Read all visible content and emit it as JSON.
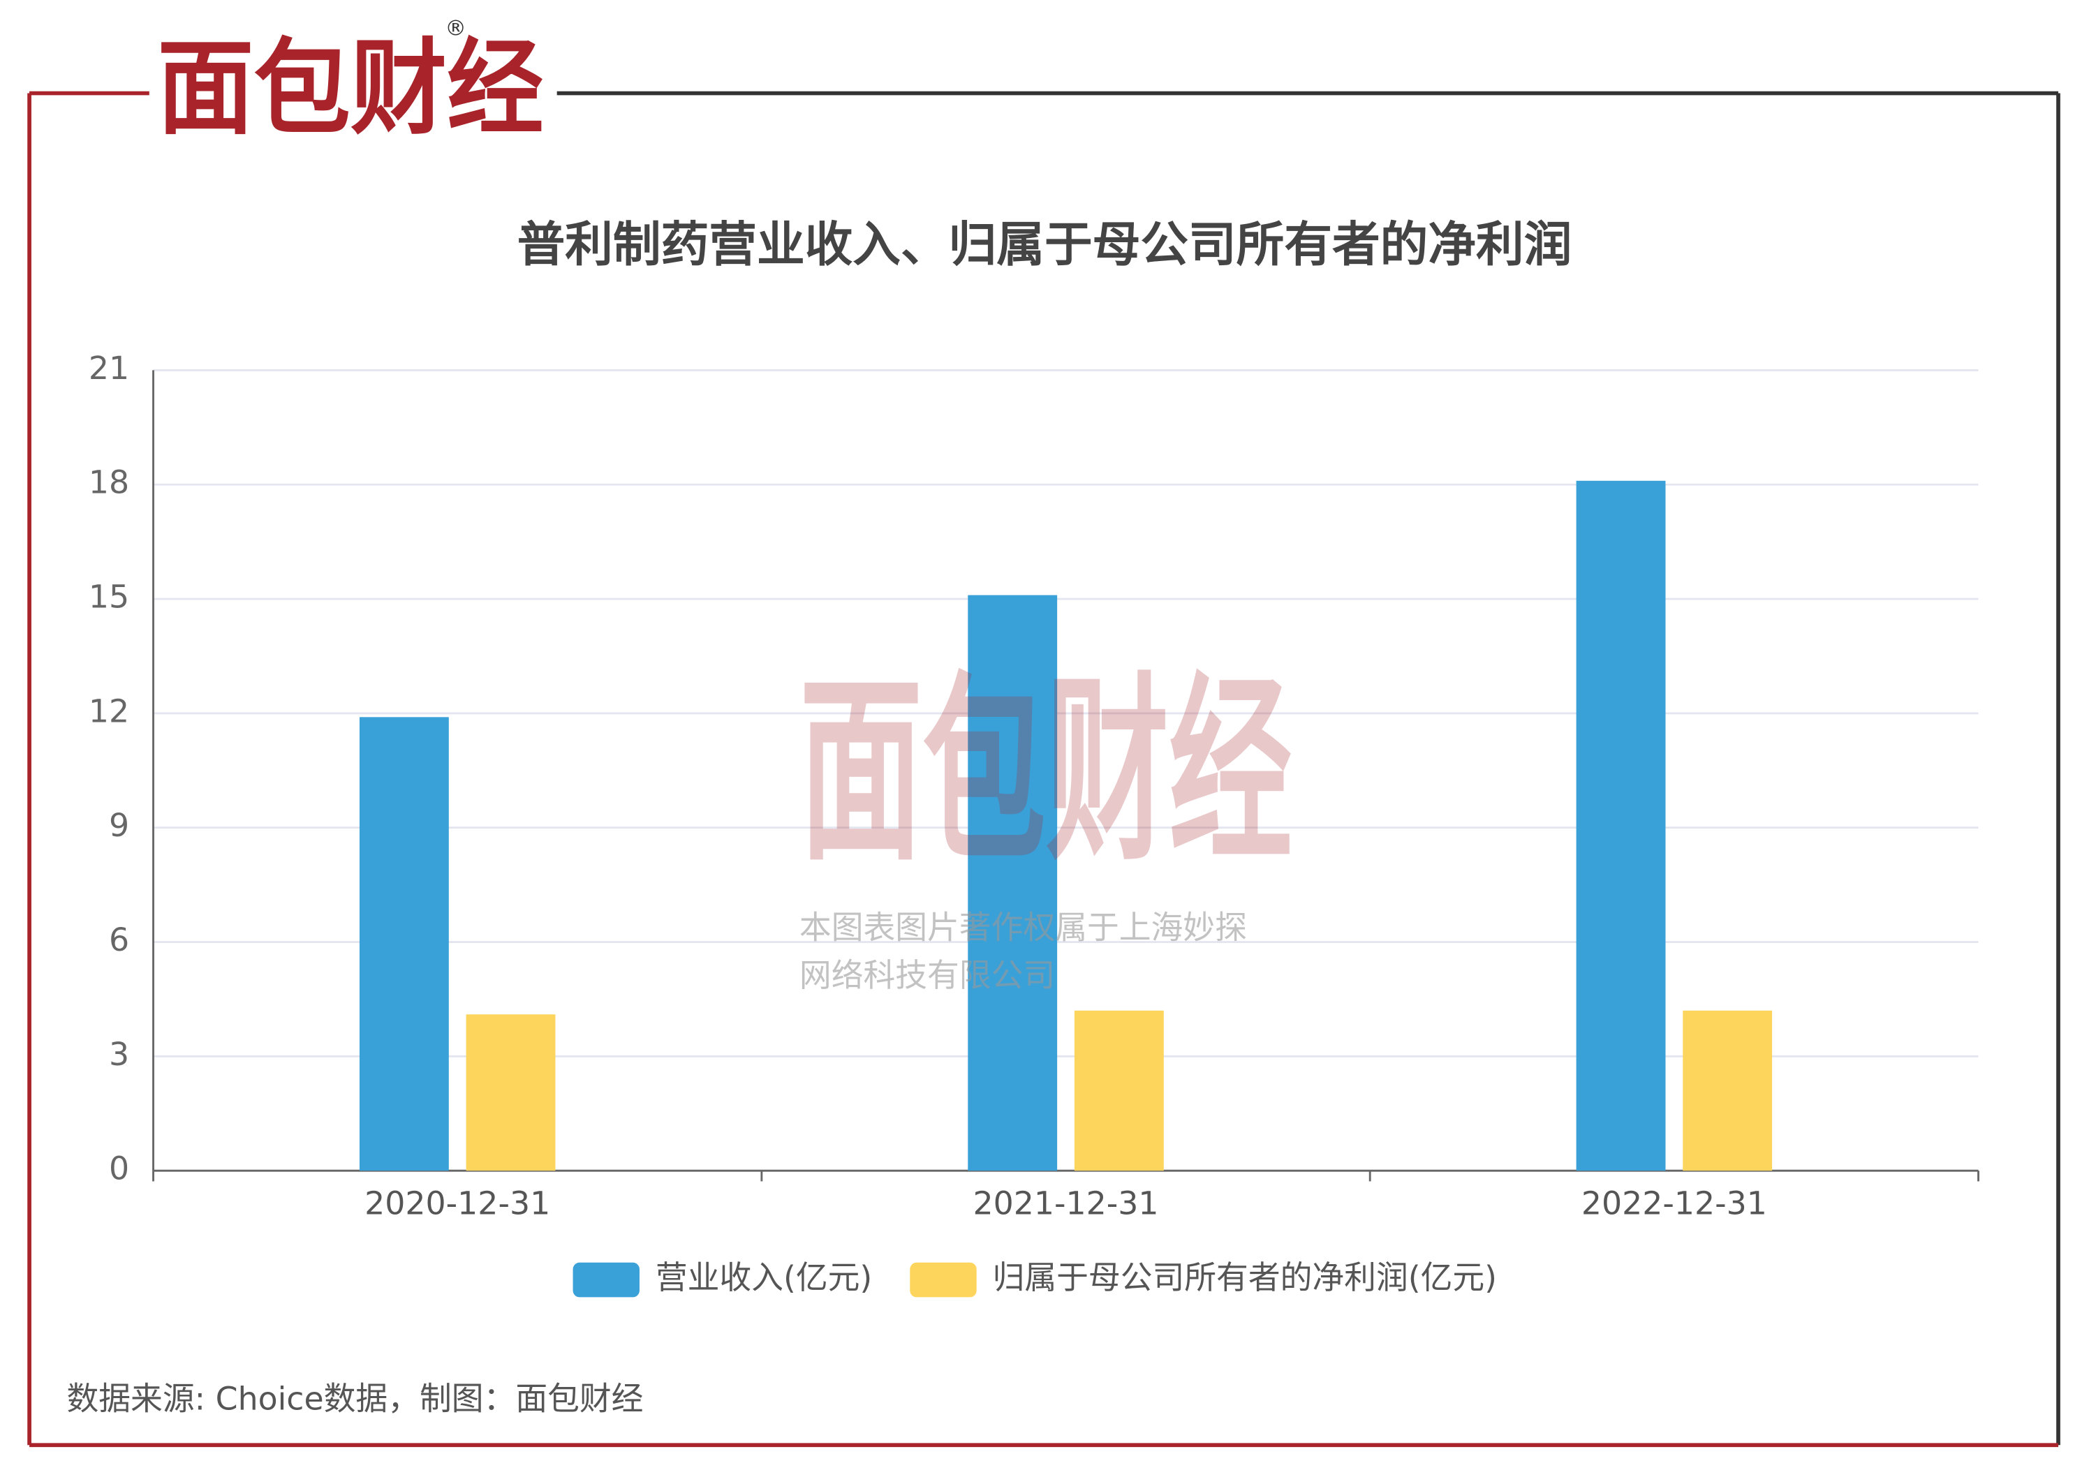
{
  "logo": {
    "text": "面包财经",
    "mark": "®"
  },
  "watermark": {
    "line1": "本图表图片著作权属于上海妙探",
    "line2": "网络科技有限公司"
  },
  "source": "数据来源: Choice数据，制图：面包财经",
  "chart_data": {
    "type": "bar",
    "title": "普利制药营业收入、归属于母公司所有者的净利润",
    "categories": [
      "2020-12-31",
      "2021-12-31",
      "2022-12-31"
    ],
    "series": [
      {
        "name": "营业收入(亿元)",
        "color": "#3aa0d8",
        "values": [
          11.9,
          15.1,
          18.1
        ]
      },
      {
        "name": "归属于母公司所有者的净利润(亿元)",
        "color": "#fdd55c",
        "values": [
          4.1,
          4.2,
          4.2
        ]
      }
    ],
    "ylim": [
      0,
      21
    ],
    "yticks": [
      0,
      3,
      6,
      9,
      12,
      15,
      18,
      21
    ],
    "grid": true,
    "legend": "bottom"
  }
}
